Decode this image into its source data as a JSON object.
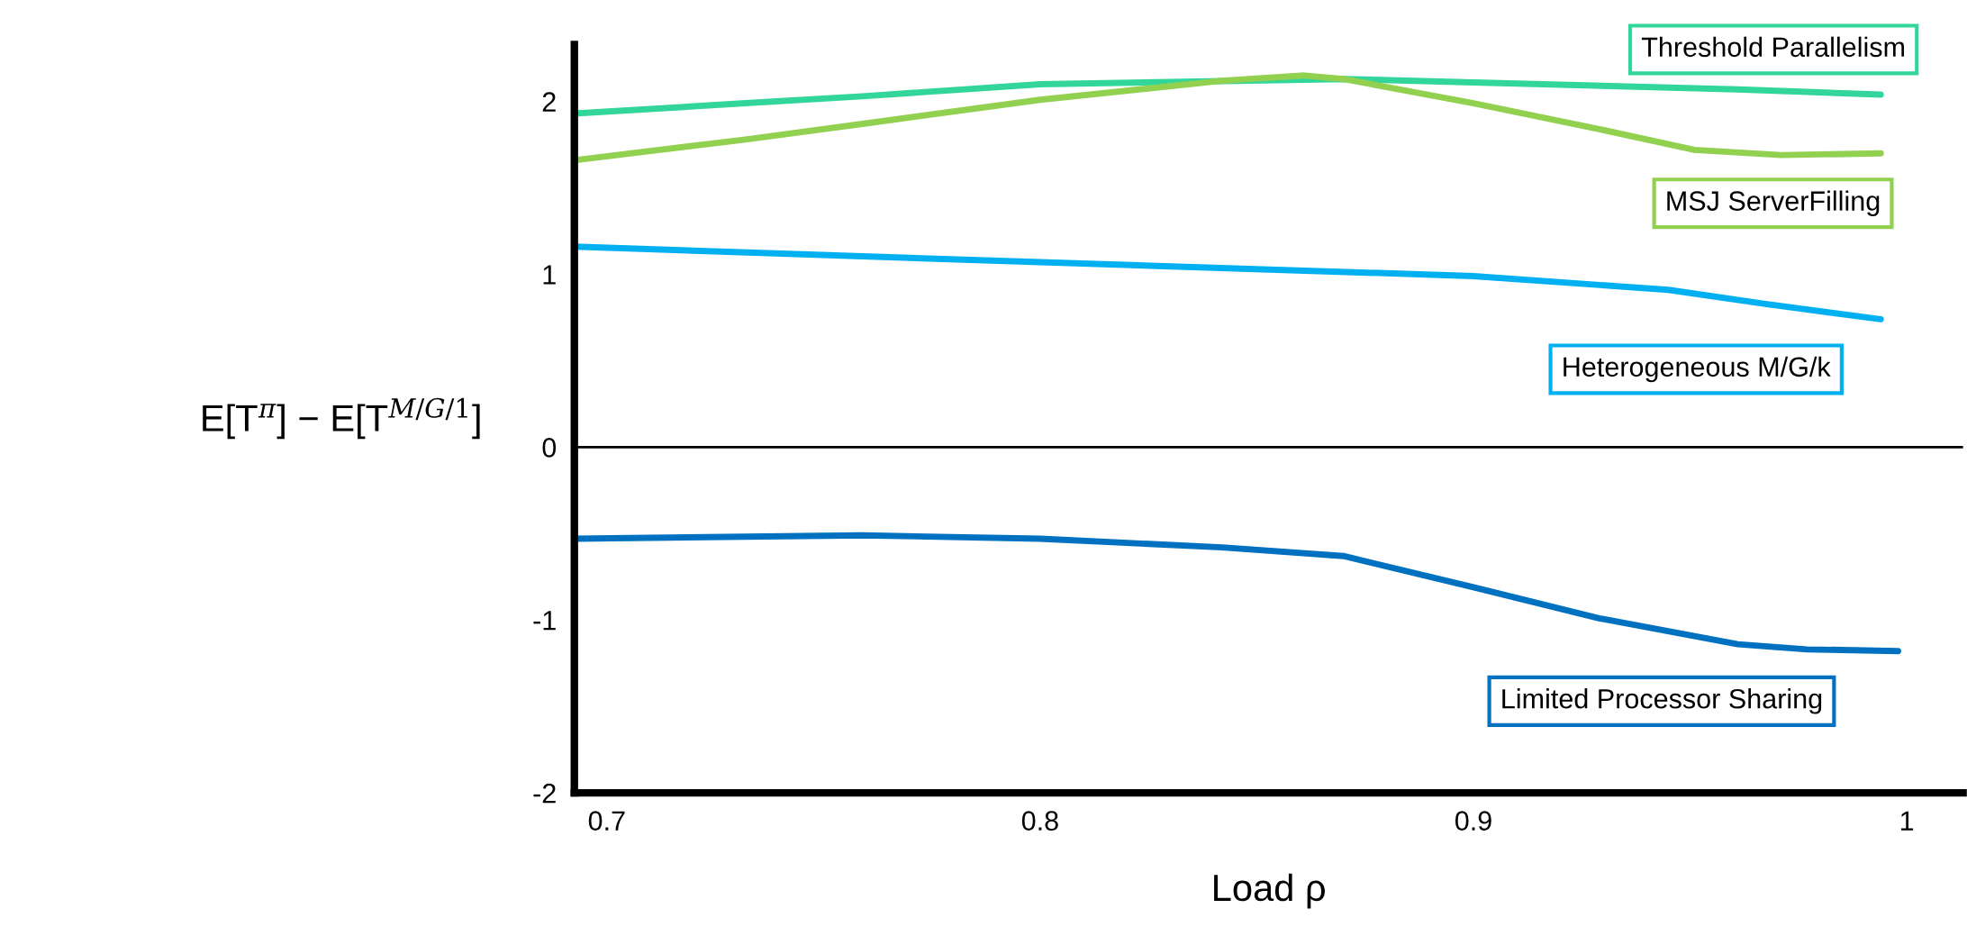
{
  "chart_data": {
    "type": "line",
    "xlabel": "Load ρ",
    "ylabel": "E[T$^{π}$] − E[T$^{M/G/1}$]",
    "xlim": [
      0.6925,
      1.013
    ],
    "ylim": [
      -2,
      2.33
    ],
    "xticks": [
      0.7,
      0.8,
      0.9,
      1
    ],
    "yticks": [
      {
        "value": -2,
        "label": "-2"
      },
      {
        "value": -1,
        "label": "-1"
      },
      0,
      1,
      2
    ],
    "grid": false,
    "legend": false,
    "marker": "none",
    "line_style": "solid",
    "ref_lines": [
      {
        "axis": "y",
        "value": 0,
        "color": "#000000"
      }
    ],
    "series": [
      {
        "name": "Threshold Parallelism",
        "color": "#33d69a",
        "x": [
          0.6925,
          0.732,
          0.759,
          0.8,
          0.87,
          0.9,
          0.961,
          0.994
        ],
        "values": [
          1.93,
          1.99,
          2.03,
          2.1,
          2.13,
          2.11,
          2.07,
          2.04
        ]
      },
      {
        "name": "MSJ ServerFilling",
        "color": "#92d050",
        "x": [
          0.6925,
          0.732,
          0.759,
          0.8,
          0.842,
          0.861,
          0.87,
          0.9,
          0.929,
          0.951,
          0.971,
          0.994
        ],
        "values": [
          1.66,
          1.78,
          1.87,
          2.01,
          2.12,
          2.15,
          2.13,
          1.99,
          1.84,
          1.72,
          1.69,
          1.7
        ]
      },
      {
        "name": "Heterogeneous M/G/k",
        "color": "#00b0f0",
        "x": [
          0.6925,
          0.8,
          0.9,
          0.945,
          0.967,
          0.994
        ],
        "values": [
          1.16,
          1.07,
          0.99,
          0.91,
          0.83,
          0.74
        ]
      },
      {
        "name": "Limited Processor Sharing",
        "color": "#0070c0",
        "x": [
          0.6925,
          0.759,
          0.8,
          0.842,
          0.87,
          0.9,
          0.929,
          0.961,
          0.977,
          0.998
        ],
        "values": [
          -0.53,
          -0.51,
          -0.53,
          -0.58,
          -0.63,
          -0.81,
          -0.99,
          -1.14,
          -1.17,
          -1.18
        ]
      }
    ]
  }
}
